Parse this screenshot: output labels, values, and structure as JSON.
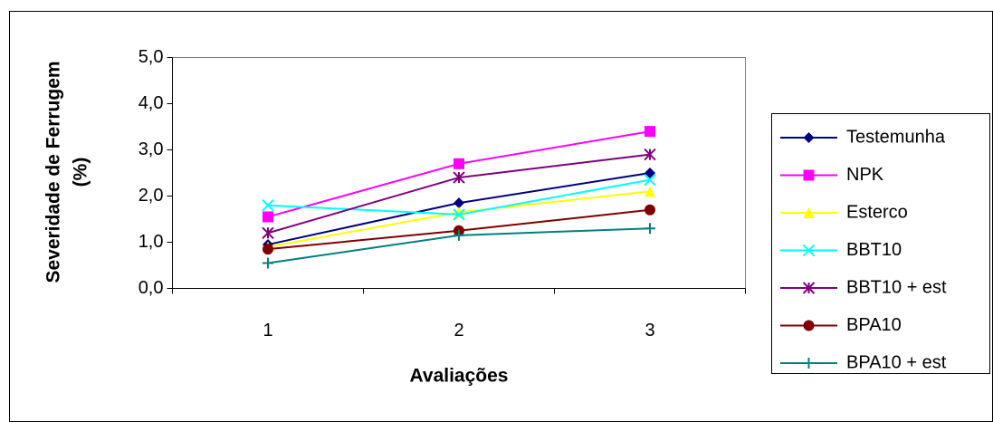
{
  "chart_data": {
    "type": "line",
    "ylabel": [
      "Severidade de Ferrugem",
      "(%)"
    ],
    "xlabel": "Avaliações",
    "categories": [
      "1",
      "2",
      "3"
    ],
    "ylim": [
      0,
      5
    ],
    "yticks": [
      {
        "value": 0,
        "label": "0,0"
      },
      {
        "value": 1,
        "label": "1,0"
      },
      {
        "value": 2,
        "label": "2,0"
      },
      {
        "value": 3,
        "label": "3,0"
      },
      {
        "value": 4,
        "label": "4,0"
      },
      {
        "value": 5,
        "label": "5,0"
      }
    ],
    "grid": false,
    "legend": "right",
    "series": [
      {
        "name": "Testemunha",
        "color": "#000080",
        "marker": "diamond",
        "values": [
          0.95,
          1.85,
          2.5
        ]
      },
      {
        "name": "NPK",
        "color": "#ff00ff",
        "marker": "square",
        "values": [
          1.55,
          2.7,
          3.4
        ]
      },
      {
        "name": "Esterco",
        "color": "#ffff00",
        "marker": "triangle",
        "values": [
          0.9,
          1.65,
          2.1
        ]
      },
      {
        "name": "BBT10",
        "color": "#00ffff",
        "marker": "x",
        "values": [
          1.8,
          1.6,
          2.35
        ]
      },
      {
        "name": "BBT10 + est",
        "color": "#800080",
        "marker": "star",
        "values": [
          1.2,
          2.4,
          2.9
        ]
      },
      {
        "name": "BPA10",
        "color": "#800000",
        "marker": "circle",
        "values": [
          0.85,
          1.25,
          1.7
        ]
      },
      {
        "name": "BPA10 + est",
        "color": "#008080",
        "marker": "plus",
        "values": [
          0.55,
          1.15,
          1.3
        ]
      }
    ]
  }
}
